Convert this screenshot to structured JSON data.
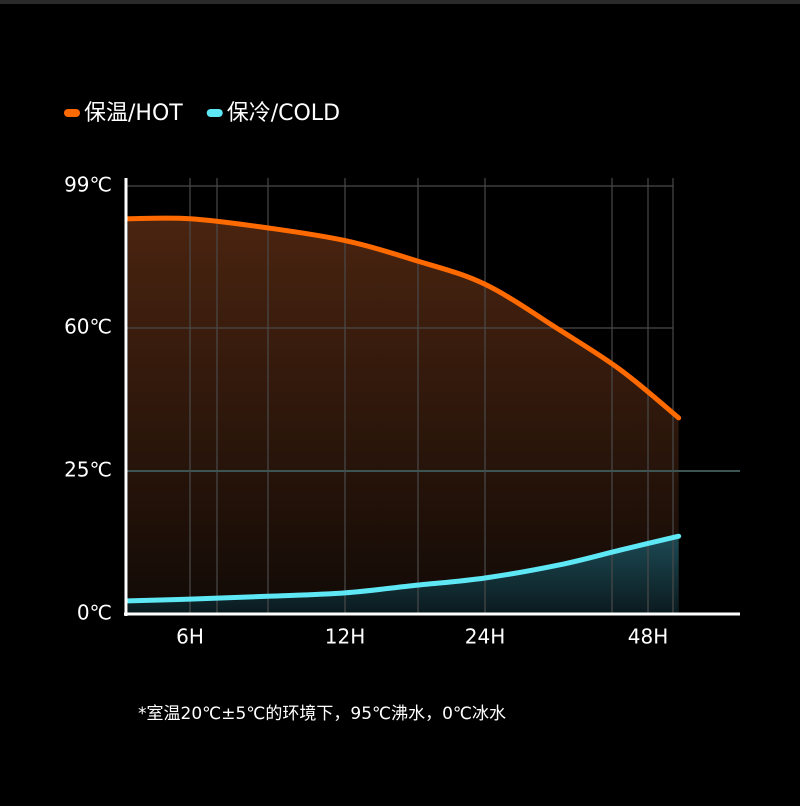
{
  "chart_data": {
    "type": "line",
    "x": [
      0,
      6,
      9,
      12,
      18,
      24,
      35,
      44,
      52
    ],
    "series": [
      {
        "name": "保温/HOT",
        "color": "#ff6a00",
        "values": [
          90,
          90,
          87.5,
          84,
          78.6,
          72,
          59.5,
          49.7,
          38
        ]
      },
      {
        "name": "保冷/COLD",
        "color": "#5ee8f5",
        "values": [
          2.3,
          2.6,
          3.1,
          3.7,
          5,
          6.3,
          8.6,
          11.2,
          13.6
        ]
      }
    ],
    "xlim": [
      0,
      60
    ],
    "xticks": [
      {
        "value": 6,
        "label": "6H"
      },
      {
        "value": 12,
        "label": "12H"
      },
      {
        "value": 24,
        "label": "24H"
      },
      {
        "value": 48,
        "label": "48H"
      }
    ],
    "ylim": [
      0,
      99
    ],
    "yticks": [
      {
        "value": 0,
        "label": "0℃"
      },
      {
        "value": 25,
        "label": "25℃"
      },
      {
        "value": 60,
        "label": "60℃"
      },
      {
        "value": 99,
        "label": "99℃"
      }
    ],
    "grid": true,
    "legend": "top-left",
    "footnote": "*室温20℃±5℃的环境下，95℃沸水，0℃冰水"
  }
}
